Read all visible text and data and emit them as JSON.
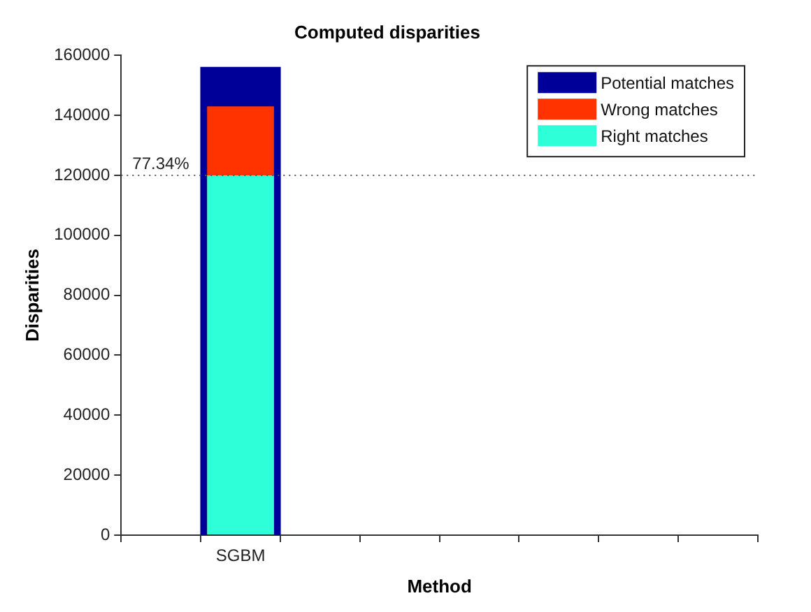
{
  "chart_data": {
    "type": "bar",
    "title": "Computed disparities",
    "xlabel": "Method",
    "ylabel": "Disparities",
    "categories": [
      null,
      "SGBM",
      null,
      null,
      null,
      null,
      null,
      null
    ],
    "series": [
      {
        "name": "Potential matches",
        "color": "#000099",
        "values": [
          null,
          156000,
          null,
          null,
          null,
          null,
          null,
          null
        ]
      },
      {
        "name": "Wrong matches",
        "color": "#ff3300",
        "values": [
          null,
          143000,
          null,
          null,
          null,
          null,
          null,
          null
        ]
      },
      {
        "name": "Right matches",
        "color": "#2effd8",
        "values": [
          null,
          120000,
          null,
          null,
          null,
          null,
          null,
          null
        ]
      }
    ],
    "ylim": [
      0,
      160000
    ],
    "yticks": [
      0,
      20000,
      40000,
      60000,
      80000,
      100000,
      120000,
      140000,
      160000
    ],
    "grid": false,
    "legend": "top right",
    "ref_lines": [
      {
        "axis": "y",
        "value": 120000,
        "color": "#555555",
        "line_style": "dotted"
      }
    ],
    "annotations": [
      "77.34%"
    ]
  }
}
